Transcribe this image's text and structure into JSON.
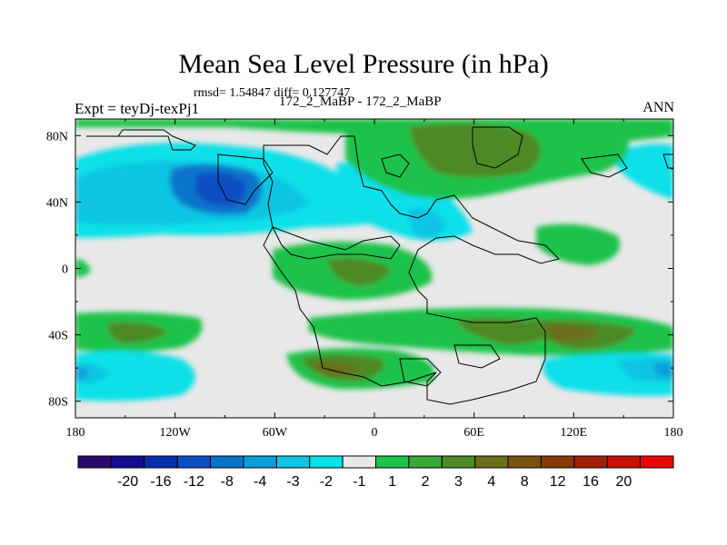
{
  "title": "Mean Sea Level Pressure (in hPa)",
  "stats": "rmsd= 1.54847 diff= 0.127747",
  "experiment": "Expt = teyDj-texPj1",
  "runs": "172_2_MaBP - 172_2_MaBP",
  "season": "ANN",
  "map_data": {
    "projection": "cylindrical-equidistant",
    "lon_range": [
      -180,
      180
    ],
    "lat_range": [
      -90,
      90
    ],
    "lon_ticks": [
      "180",
      "120W",
      "60W",
      "0",
      "60E",
      "120E",
      "180"
    ],
    "lat_ticks": [
      "80N",
      "40N",
      "0",
      "40S",
      "80S"
    ],
    "colorbar": {
      "colors": [
        "#2a0a6e",
        "#120c8f",
        "#0a2fae",
        "#0a50c2",
        "#0a74cc",
        "#0a9ed6",
        "#10c4e2",
        "#0ae0e8",
        "#e8e8e8",
        "#1cc24a",
        "#3ca83c",
        "#4e8a26",
        "#6a6e1a",
        "#7a5210",
        "#8a3a08",
        "#a22008",
        "#c8100a",
        "#e8060a"
      ],
      "labels": [
        "-20",
        "-16",
        "-12",
        "-8",
        "-4",
        "-3",
        "-2",
        "-1",
        "1",
        "2",
        "3",
        "4",
        "8",
        "12",
        "16",
        "20"
      ]
    }
  }
}
